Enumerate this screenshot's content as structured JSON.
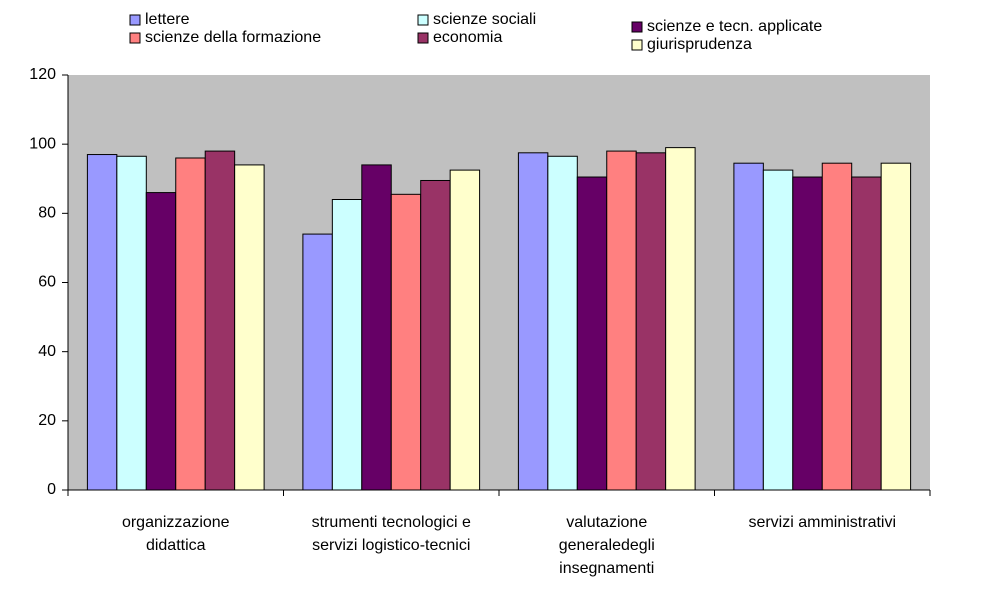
{
  "chart_data": {
    "type": "bar",
    "categories": [
      "organizzazione didattica",
      "strumenti tecnologici e servizi logistico-tecnici",
      "valutazione generaledegli insegnamenti",
      "servizi amministrativi"
    ],
    "series": [
      {
        "name": "lettere",
        "color": "#9999ff",
        "values": [
          97,
          74,
          97.5,
          94.5
        ]
      },
      {
        "name": "scienze sociali",
        "color": "#ccffff",
        "values": [
          96.5,
          84,
          96.5,
          92.5
        ]
      },
      {
        "name": "scienze e tecn. applicate",
        "color": "#660066",
        "values": [
          86,
          94,
          90.5,
          90.5
        ]
      },
      {
        "name": "scienze della formazione",
        "color": "#ff8080",
        "values": [
          96,
          85.5,
          98,
          94.5
        ]
      },
      {
        "name": "economia",
        "color": "#993366",
        "values": [
          98,
          89.5,
          97.5,
          90.5
        ]
      },
      {
        "name": "giurisprudenza",
        "color": "#ffffcc",
        "values": [
          94,
          92.5,
          99,
          94.5
        ]
      }
    ],
    "ylim": [
      0,
      120
    ],
    "yticks": [
      0,
      20,
      40,
      60,
      80,
      100,
      120
    ],
    "plot_background": "#c0c0c0",
    "legend": "top"
  }
}
